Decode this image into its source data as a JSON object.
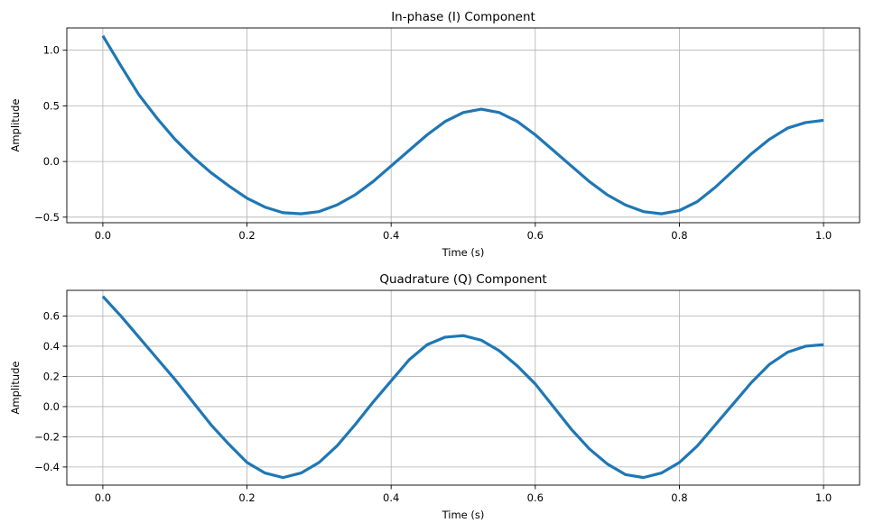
{
  "figure": {
    "background": "#ffffff"
  },
  "chart_data": [
    {
      "type": "line",
      "title": "In-phase (I) Component",
      "xlabel": "Time (s)",
      "ylabel": "Amplitude",
      "xlim": [
        -0.05,
        1.05
      ],
      "ylim": [
        -0.55,
        1.2
      ],
      "xticks": [
        0.0,
        0.2,
        0.4,
        0.6,
        0.8,
        1.0
      ],
      "xtick_labels": [
        "0.0",
        "0.2",
        "0.4",
        "0.6",
        "0.8",
        "1.0"
      ],
      "yticks": [
        -0.5,
        0.0,
        0.5,
        1.0
      ],
      "ytick_labels": [
        "−0.5",
        "0.0",
        "0.5",
        "1.0"
      ],
      "grid": true,
      "color": "#1f77b4",
      "series": [
        {
          "x": [
            0.0,
            0.025,
            0.05,
            0.075,
            0.1,
            0.125,
            0.15,
            0.175,
            0.2,
            0.225,
            0.25,
            0.275,
            0.3,
            0.325,
            0.35,
            0.375,
            0.4,
            0.425,
            0.45,
            0.475,
            0.5,
            0.525,
            0.55,
            0.575,
            0.6,
            0.625,
            0.65,
            0.675,
            0.7,
            0.725,
            0.75,
            0.775,
            0.8,
            0.825,
            0.85,
            0.875,
            0.9,
            0.925,
            0.95,
            0.975,
            1.0
          ],
          "y": [
            1.13,
            0.86,
            0.6,
            0.39,
            0.2,
            0.04,
            -0.1,
            -0.22,
            -0.33,
            -0.41,
            -0.46,
            -0.47,
            -0.45,
            -0.39,
            -0.3,
            -0.18,
            -0.04,
            0.1,
            0.24,
            0.36,
            0.44,
            0.47,
            0.44,
            0.36,
            0.24,
            0.1,
            -0.04,
            -0.18,
            -0.3,
            -0.39,
            -0.45,
            -0.47,
            -0.44,
            -0.36,
            -0.23,
            -0.08,
            0.07,
            0.2,
            0.3,
            0.35,
            0.37
          ]
        }
      ]
    },
    {
      "type": "line",
      "title": "Quadrature (Q) Component",
      "xlabel": "Time (s)",
      "ylabel": "Amplitude",
      "xlim": [
        -0.05,
        1.05
      ],
      "ylim": [
        -0.52,
        0.77
      ],
      "xticks": [
        0.0,
        0.2,
        0.4,
        0.6,
        0.8,
        1.0
      ],
      "xtick_labels": [
        "0.0",
        "0.2",
        "0.4",
        "0.6",
        "0.8",
        "1.0"
      ],
      "yticks": [
        -0.4,
        -0.2,
        0.0,
        0.2,
        0.4,
        0.6
      ],
      "ytick_labels": [
        "−0.4",
        "−0.2",
        "0.0",
        "0.2",
        "0.4",
        "0.6"
      ],
      "grid": true,
      "color": "#1f77b4",
      "series": [
        {
          "x": [
            0.0,
            0.025,
            0.05,
            0.075,
            0.1,
            0.125,
            0.15,
            0.175,
            0.2,
            0.225,
            0.25,
            0.275,
            0.3,
            0.325,
            0.35,
            0.375,
            0.4,
            0.425,
            0.45,
            0.475,
            0.5,
            0.525,
            0.55,
            0.575,
            0.6,
            0.625,
            0.65,
            0.675,
            0.7,
            0.725,
            0.75,
            0.775,
            0.8,
            0.825,
            0.85,
            0.875,
            0.9,
            0.925,
            0.95,
            0.975,
            1.0
          ],
          "y": [
            0.73,
            0.6,
            0.46,
            0.32,
            0.18,
            0.03,
            -0.12,
            -0.25,
            -0.37,
            -0.44,
            -0.47,
            -0.44,
            -0.37,
            -0.26,
            -0.12,
            0.03,
            0.17,
            0.31,
            0.41,
            0.46,
            0.47,
            0.44,
            0.37,
            0.27,
            0.15,
            0.0,
            -0.15,
            -0.28,
            -0.38,
            -0.45,
            -0.47,
            -0.44,
            -0.37,
            -0.26,
            -0.12,
            0.02,
            0.16,
            0.28,
            0.36,
            0.4,
            0.41
          ]
        }
      ]
    }
  ]
}
